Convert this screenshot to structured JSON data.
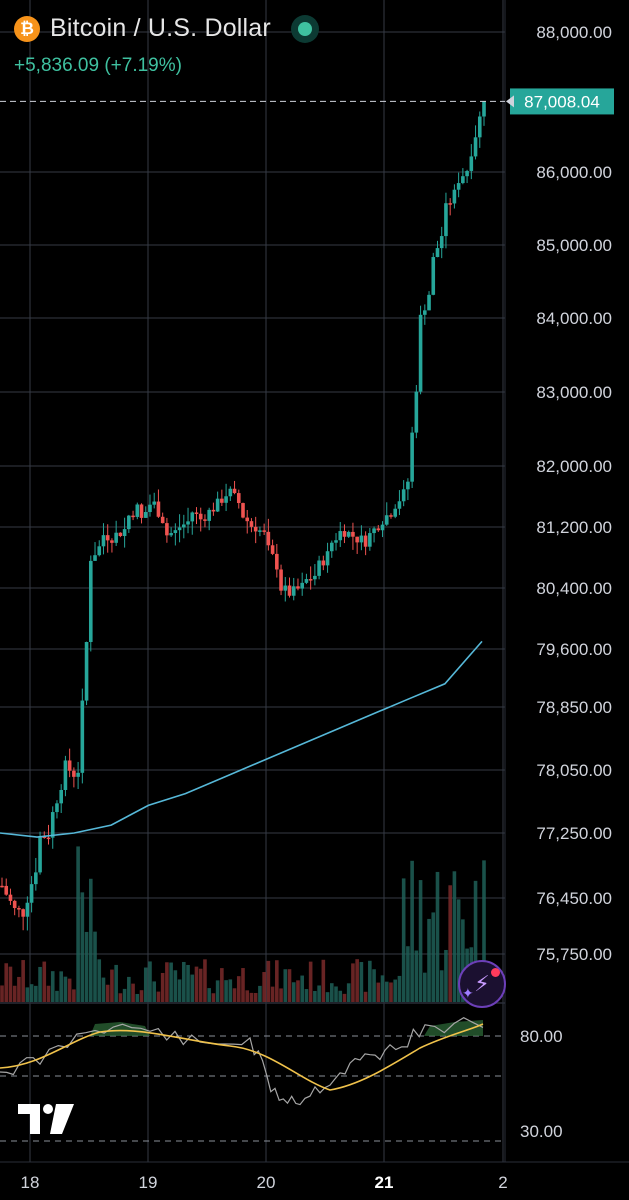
{
  "header": {
    "icon": "bitcoin-coin-icon",
    "coin_glyph": "₿",
    "title": "Bitcoin / U.S. Dollar",
    "change": "+5,836.09 (+7.19%)",
    "live_status_color": "#3fc1a0"
  },
  "price_axis": {
    "labels": [
      "88,000.00",
      "86,000.00",
      "85,000.00",
      "84,000.00",
      "83,000.00",
      "82,000.00",
      "81,200.00",
      "80,400.00",
      "79,600.00",
      "78,850.00",
      "78,050.00",
      "77,250.00",
      "76,450.00",
      "75,750.00"
    ],
    "current_price": "87,008.04",
    "current_price_color": "#26a69a"
  },
  "rsi_axis": {
    "labels": [
      "80.00",
      "30.00"
    ]
  },
  "time_axis": {
    "labels": [
      "18",
      "19",
      "20",
      "21",
      "2"
    ],
    "highlighted": "21"
  },
  "colors": {
    "up": "#26a69a",
    "down": "#ef5350",
    "ma": "#56b8d8",
    "rsi": "#a6a6a6",
    "rsi_ma": "#f0c24b",
    "grid": "#363a45"
  },
  "icons": {
    "logo": "tradingview-logo-icon",
    "assistant": "ai-assistant-icon"
  },
  "chart_data": {
    "type": "candlestick",
    "x_labels": [
      "18",
      "19",
      "20",
      "21",
      "2"
    ],
    "price_range": [
      75750,
      88000
    ],
    "current_price": 87008.04,
    "price_path": [
      [
        76600,
        76300
      ],
      [
        76300,
        76250
      ],
      [
        76450,
        77000
      ],
      [
        77200,
        77250
      ],
      [
        77500,
        78050
      ],
      [
        78100,
        77950
      ],
      [
        78050,
        80500
      ],
      [
        80800,
        81000
      ],
      [
        81100,
        81050
      ],
      [
        81100,
        81200
      ],
      [
        81350,
        81500
      ],
      [
        81300,
        81600
      ],
      [
        81500,
        81200
      ],
      [
        81100,
        81150
      ],
      [
        81200,
        81300
      ],
      [
        81400,
        81250
      ],
      [
        81350,
        81500
      ],
      [
        81500,
        81700
      ],
      [
        81650,
        81450
      ],
      [
        81350,
        81150
      ],
      [
        81200,
        81050
      ],
      [
        80900,
        80600
      ],
      [
        80400,
        80300
      ],
      [
        80350,
        80450
      ],
      [
        80500,
        80600
      ],
      [
        80700,
        80900
      ],
      [
        81000,
        81200
      ],
      [
        81150,
        81050
      ],
      [
        81050,
        81000
      ],
      [
        81100,
        81300
      ],
      [
        81300,
        81450
      ],
      [
        81500,
        81700
      ],
      [
        81800,
        83700
      ],
      [
        84000,
        84500
      ],
      [
        84800,
        85300
      ],
      [
        85500,
        85800
      ],
      [
        85900,
        86100
      ],
      [
        86300,
        87008.04
      ]
    ],
    "ma_path": [
      77250,
      77200,
      77250,
      77350,
      77600,
      77750,
      77950,
      78150,
      78350,
      78550,
      78750,
      78950,
      79150,
      79700
    ],
    "rsi": {
      "levels": [
        80,
        30
      ],
      "upper_band": 80,
      "lower_band": 30
    }
  }
}
